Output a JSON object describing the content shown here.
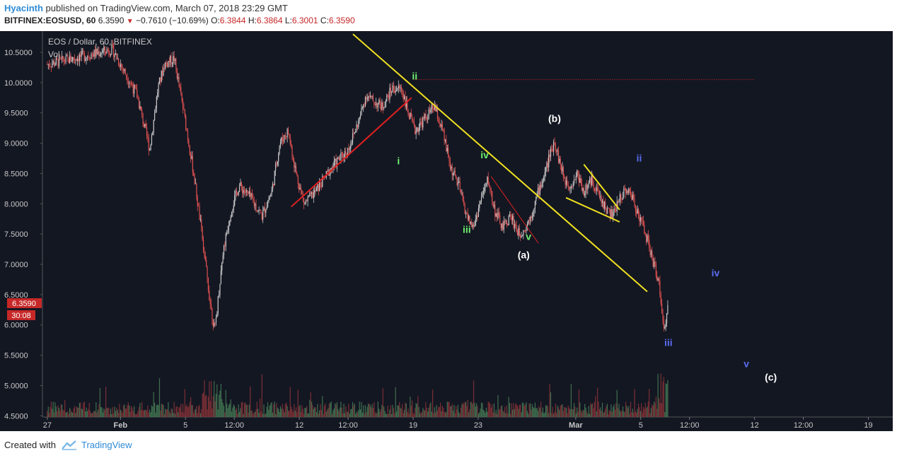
{
  "header": {
    "author": "Hyacinth",
    "published": "published on TradingView.com, March 07, 2018 23:29 GMT",
    "symbol": "BITFINEX:EOSUSD, 60",
    "last": "6.3590",
    "change": "−0.7610 (−10.69%)",
    "o_label": "O:",
    "o": "6.3844",
    "h_label": "H:",
    "h": "6.3864",
    "l_label": "L:",
    "l": "6.3001",
    "c_label": "C:",
    "c": "6.3590"
  },
  "legend": {
    "title": "EOS / Dollar, 60, BITFINEX",
    "vol": "Vol"
  },
  "price_tag": {
    "price": "6.3590",
    "timer": "30:08"
  },
  "footer": {
    "created_with": "Created with",
    "brand": "TradingView"
  },
  "colors": {
    "background": "#131722",
    "up": "#c8c8c8",
    "down": "#e05050",
    "trend_yellow": "#f0e020",
    "trend_red": "#e02020",
    "wave_green": "#6ef06e",
    "wave_blue": "#5a6cf0",
    "wave_white": "#ffffff",
    "price_tag": "#c62828"
  },
  "chart_data": {
    "type": "candlestick",
    "title": "EOS / Dollar, 60, BITFINEX",
    "y_ticks": [
      "10.5000",
      "10.0000",
      "9.5000",
      "9.0000",
      "8.5000",
      "8.0000",
      "7.5000",
      "7.0000",
      "6.5000",
      "6.0000",
      "5.5000",
      "5.0000",
      "4.5000"
    ],
    "y_tick_values": [
      10.5,
      10.0,
      9.5,
      9.0,
      8.5,
      8.0,
      7.5,
      7.0,
      6.5,
      6.0,
      5.5,
      5.0,
      4.5
    ],
    "ylim": [
      4.48,
      10.85
    ],
    "x_ticks": [
      {
        "label": "27",
        "x": 0.0
      },
      {
        "label": "Feb",
        "x": 4.5
      },
      {
        "label": "5",
        "x": 8.5
      },
      {
        "label": "12:00",
        "x": 11.5
      },
      {
        "label": "12",
        "x": 15.5
      },
      {
        "label": "12:00",
        "x": 18.5
      },
      {
        "label": "19",
        "x": 22.5
      },
      {
        "label": "23",
        "x": 26.5
      },
      {
        "label": "Mar",
        "x": 32.5
      },
      {
        "label": "5",
        "x": 36.5
      },
      {
        "label": "12:00",
        "x": 39.5
      },
      {
        "label": "12",
        "x": 43.5
      },
      {
        "label": "12:00",
        "x": 46.5
      },
      {
        "label": "19",
        "x": 50.5
      }
    ],
    "xlim": [
      -0.3,
      52.0
    ],
    "price_path": [
      [
        0.0,
        10.3
      ],
      [
        4.0,
        10.55
      ],
      [
        5.5,
        9.8
      ],
      [
        6.3,
        8.9
      ],
      [
        6.8,
        9.9
      ],
      [
        7.2,
        10.3
      ],
      [
        7.8,
        10.4
      ],
      [
        8.4,
        9.5
      ],
      [
        9.0,
        8.5
      ],
      [
        9.5,
        7.5
      ],
      [
        10.0,
        6.4
      ],
      [
        10.3,
        5.9
      ],
      [
        10.8,
        7.2
      ],
      [
        11.3,
        7.9
      ],
      [
        11.8,
        8.3
      ],
      [
        12.5,
        8.1
      ],
      [
        13.2,
        7.8
      ],
      [
        13.8,
        8.2
      ],
      [
        14.3,
        9.0
      ],
      [
        14.8,
        9.2
      ],
      [
        15.3,
        8.5
      ],
      [
        15.8,
        8.0
      ],
      [
        16.5,
        8.2
      ],
      [
        17.5,
        8.6
      ],
      [
        18.5,
        8.9
      ],
      [
        19.2,
        9.4
      ],
      [
        19.6,
        9.8
      ],
      [
        20.0,
        9.7
      ],
      [
        20.6,
        9.6
      ],
      [
        21.2,
        9.9
      ],
      [
        21.8,
        9.9
      ],
      [
        22.2,
        9.5
      ],
      [
        22.6,
        9.2
      ],
      [
        23.2,
        9.4
      ],
      [
        23.8,
        9.6
      ],
      [
        24.3,
        9.2
      ],
      [
        24.8,
        8.6
      ],
      [
        25.3,
        8.3
      ],
      [
        25.8,
        7.8
      ],
      [
        26.2,
        7.6
      ],
      [
        26.7,
        8.1
      ],
      [
        27.1,
        8.4
      ],
      [
        27.5,
        7.9
      ],
      [
        28.0,
        7.6
      ],
      [
        28.5,
        7.8
      ],
      [
        29.0,
        7.5
      ],
      [
        29.4,
        7.6
      ],
      [
        29.8,
        7.85
      ],
      [
        30.2,
        8.2
      ],
      [
        30.6,
        8.5
      ],
      [
        30.9,
        8.8
      ],
      [
        31.2,
        9.05
      ],
      [
        31.4,
        8.8
      ],
      [
        31.8,
        8.4
      ],
      [
        32.2,
        8.3
      ],
      [
        32.6,
        8.5
      ],
      [
        33.0,
        8.2
      ],
      [
        33.5,
        8.4
      ],
      [
        34.0,
        8.1
      ],
      [
        34.4,
        7.9
      ],
      [
        34.8,
        7.8
      ],
      [
        35.2,
        8.1
      ],
      [
        35.6,
        8.25
      ],
      [
        36.0,
        8.1
      ],
      [
        36.4,
        7.8
      ],
      [
        36.8,
        7.5
      ],
      [
        37.2,
        7.1
      ],
      [
        37.6,
        6.7
      ],
      [
        37.9,
        5.9
      ],
      [
        38.2,
        6.35
      ]
    ],
    "series": [
      {
        "type": "trendline",
        "color": "yellow",
        "points": [
          [
            18.8,
            10.8
          ],
          [
            36.9,
            6.55
          ]
        ]
      },
      {
        "type": "trendline",
        "color": "red",
        "points": [
          [
            15.0,
            7.95
          ],
          [
            22.4,
            9.75
          ]
        ]
      },
      {
        "type": "trendline",
        "color": "red-thin",
        "points": [
          [
            27.3,
            8.45
          ],
          [
            30.2,
            7.35
          ]
        ]
      },
      {
        "type": "trendline",
        "color": "yellow",
        "points": [
          [
            31.9,
            8.1
          ],
          [
            35.2,
            7.7
          ]
        ]
      },
      {
        "type": "trendline",
        "color": "yellow",
        "points": [
          [
            33.0,
            8.65
          ],
          [
            35.2,
            7.9
          ]
        ]
      },
      {
        "type": "hline",
        "color": "red-dotted",
        "y": 10.05,
        "x_range": [
          22.6,
          43.5
        ]
      }
    ],
    "annotations": [
      {
        "text": "ii",
        "x": 22.6,
        "y": 10.05,
        "color": "green"
      },
      {
        "text": "i",
        "x": 21.6,
        "y": 8.65,
        "color": "green"
      },
      {
        "text": "iv",
        "x": 26.9,
        "y": 8.75,
        "color": "green"
      },
      {
        "text": "iii",
        "x": 25.8,
        "y": 7.52,
        "color": "green"
      },
      {
        "text": "v",
        "x": 29.6,
        "y": 7.4,
        "color": "green"
      },
      {
        "text": "(a)",
        "x": 29.3,
        "y": 7.1,
        "color": "white"
      },
      {
        "text": "(b)",
        "x": 31.2,
        "y": 9.35,
        "color": "white"
      },
      {
        "text": "ii",
        "x": 36.4,
        "y": 8.7,
        "color": "blue"
      },
      {
        "text": "iv",
        "x": 41.1,
        "y": 6.8,
        "color": "blue"
      },
      {
        "text": "iii",
        "x": 38.2,
        "y": 5.65,
        "color": "blue"
      },
      {
        "text": "v",
        "x": 43.0,
        "y": 5.3,
        "color": "blue"
      },
      {
        "text": "(c)",
        "x": 44.5,
        "y": 5.08,
        "color": "white"
      }
    ]
  }
}
